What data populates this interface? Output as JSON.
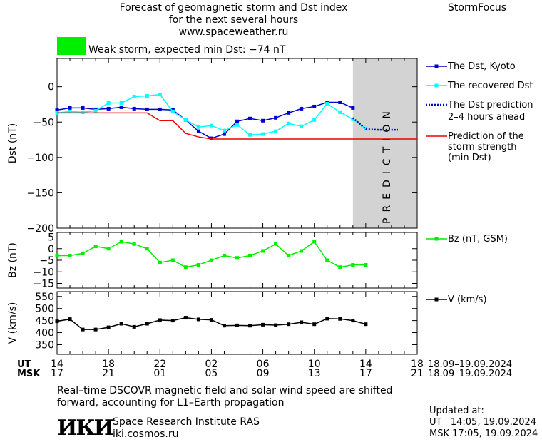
{
  "header": {
    "title_line1": "Forecast of geomagnetic storm and Dst index",
    "title_line2": "for the next several hours",
    "url": "www.spaceweather.ru",
    "brand": "StormFocus",
    "storm_label": "Weak storm, expected min Dst: −74 nT",
    "storm_color": "#00ee00"
  },
  "legend": {
    "dst_kyoto": "The Dst, Kyoto",
    "dst_recovered": "The recovered Dst",
    "dst_prediction_l1": "The Dst prediction",
    "dst_prediction_l2": "2–4 hours ahead",
    "storm_pred_l1": "Prediction of the",
    "storm_pred_l2": "storm strength",
    "storm_pred_l3": "(min Dst)",
    "bz": "Bz (nT, GSM)",
    "v": "V (km/s)"
  },
  "footer": {
    "ut_label": "UT",
    "msk_label": "MSK",
    "ut_ticks": [
      "14",
      "18",
      "22",
      "02",
      "06",
      "10",
      "14",
      "18"
    ],
    "msk_ticks": [
      "17",
      "21",
      "01",
      "05",
      "09",
      "13",
      "17",
      "21"
    ],
    "date_range_ut": "18.09–19.09.2024",
    "date_range_msk": "18.09–19.09.2024",
    "note_line1": "Real–time DSCOVR magnetic field and solar wind speed are shifted",
    "note_line2": "forward, accounting for L1–Earth propagation",
    "institute": "Space Research Institute RAS",
    "institute_url": "iki.cosmos.ru",
    "logo_text": "ИКИ",
    "updated_label": "Updated at:",
    "updated_ut": "UT   14:05, 19.09.2024",
    "updated_msk": "MSK 17:05, 19.09.2024"
  },
  "colors": {
    "kyoto": "#0000cc",
    "recovered": "#00ffff",
    "prediction": "#0000cc",
    "storm": "#ee0000",
    "bz": "#00ee00",
    "v": "#000000",
    "prediction_band": "#d3d3d3"
  },
  "chart_data": [
    {
      "type": "line",
      "ylabel": "Dst (nT)",
      "x_unit": "hours from 14 UT 18.09.2024",
      "xlim": [
        0,
        28
      ],
      "ylim": [
        -200,
        40
      ],
      "yticks": [
        0,
        -50,
        -100,
        -150,
        -200
      ],
      "prediction_band": [
        23,
        28
      ],
      "prediction_text": "PREDICTION",
      "series": [
        {
          "name": "The Dst, Kyoto",
          "key": "kyoto",
          "x": [
            0,
            1,
            2,
            3,
            4,
            5,
            6,
            7,
            8,
            9,
            10,
            11,
            12,
            13,
            14,
            15,
            16,
            17,
            18,
            19,
            20,
            21,
            22,
            23
          ],
          "y": [
            -33,
            -30,
            -30,
            -32,
            -31,
            -29,
            -31,
            -32,
            -32,
            -33,
            -47,
            -63,
            -73,
            -67,
            -49,
            -45,
            -48,
            -44,
            -37,
            -31,
            -28,
            -22,
            -22,
            -30
          ]
        },
        {
          "name": "The recovered Dst",
          "key": "recovered",
          "x": [
            0,
            1,
            2,
            3,
            4,
            5,
            6,
            7,
            8,
            9,
            10,
            11,
            12,
            13,
            14,
            15,
            16,
            17,
            18,
            19,
            20,
            21,
            22,
            23,
            24
          ],
          "y": [
            -37,
            -35,
            -36,
            -34,
            -23,
            -23,
            -14,
            -13,
            -11,
            -35,
            -47,
            -57,
            -55,
            -62,
            -54,
            -68,
            -67,
            -63,
            -52,
            -56,
            -47,
            -24,
            -36,
            -46,
            -59
          ]
        },
        {
          "name": "The Dst prediction 2–4 hours ahead",
          "key": "prediction",
          "style": "dotted",
          "x": [
            23,
            24,
            25,
            26.5
          ],
          "y": [
            -44,
            -60,
            -61,
            -61
          ]
        },
        {
          "name": "Prediction of the storm strength (min Dst)",
          "key": "storm",
          "style": "step",
          "x": [
            -1,
            7,
            8,
            9,
            10,
            11,
            12,
            28
          ],
          "y": [
            -37,
            -37,
            -48,
            -48,
            -66,
            -71,
            -74,
            -74
          ]
        }
      ]
    },
    {
      "type": "line",
      "ylabel": "Bz (nT)",
      "xlim": [
        0,
        28
      ],
      "ylim": [
        -17,
        7
      ],
      "yticks": [
        5,
        0,
        -5,
        -10,
        -15
      ],
      "series": [
        {
          "name": "Bz (nT, GSM)",
          "key": "bz",
          "x": [
            0,
            1,
            2,
            3,
            4,
            5,
            6,
            7,
            8,
            9,
            10,
            11,
            12,
            13,
            14,
            15,
            16,
            17,
            18,
            19,
            20,
            21,
            22,
            23,
            24
          ],
          "y": [
            -3,
            -3,
            -2,
            1,
            0,
            3,
            2,
            0,
            -6,
            -5,
            -8,
            -7,
            -5,
            -3,
            -4,
            -3,
            -1,
            2,
            -3,
            -1,
            3,
            -5,
            -8,
            -7,
            -7
          ]
        }
      ]
    },
    {
      "type": "line",
      "ylabel": "V (km/s)",
      "xlim": [
        0,
        28
      ],
      "ylim": [
        310,
        570
      ],
      "yticks": [
        550,
        500,
        450,
        400,
        350
      ],
      "series": [
        {
          "name": "V (km/s)",
          "key": "v",
          "x": [
            0,
            1,
            2,
            3,
            4,
            5,
            6,
            7,
            8,
            9,
            10,
            11,
            12,
            13,
            14,
            15,
            16,
            17,
            18,
            19,
            20,
            21,
            22,
            23,
            24
          ],
          "y": [
            447,
            456,
            413,
            413,
            422,
            437,
            424,
            437,
            452,
            450,
            462,
            455,
            453,
            429,
            430,
            429,
            433,
            431,
            435,
            443,
            435,
            458,
            457,
            450,
            435
          ]
        }
      ]
    }
  ]
}
